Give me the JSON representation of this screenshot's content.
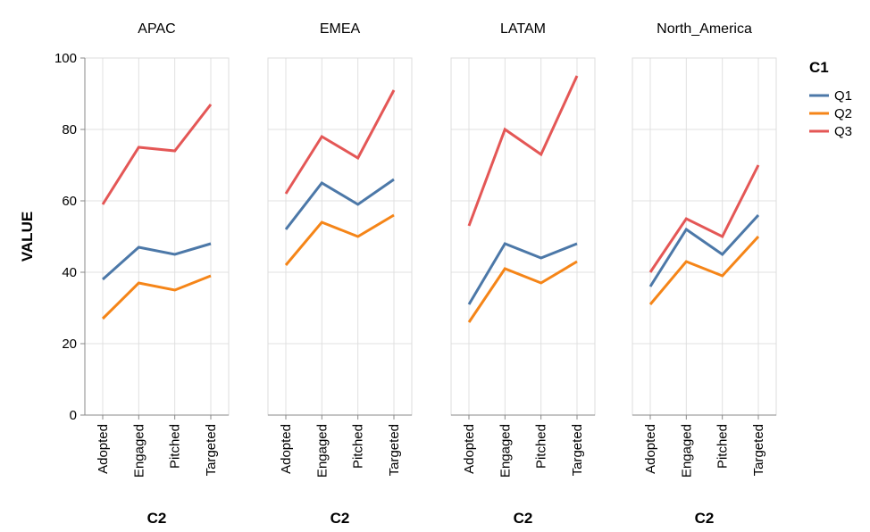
{
  "chart_data": {
    "type": "line",
    "facet_field": "",
    "facets": [
      "APAC",
      "EMEA",
      "LATAM",
      "North_America"
    ],
    "categories": [
      "Adopted",
      "Engaged",
      "Pitched",
      "Targeted"
    ],
    "xlabel": "C2",
    "ylabel": "VALUE",
    "ylim": [
      0,
      100
    ],
    "yticks": [
      0,
      20,
      40,
      60,
      80,
      100
    ],
    "grid": true,
    "legend": {
      "title": "C1",
      "placement": "right",
      "items": [
        {
          "name": "Q1",
          "color": "#4c78a8"
        },
        {
          "name": "Q2",
          "color": "#f58518"
        },
        {
          "name": "Q3",
          "color": "#e45756"
        }
      ]
    },
    "panels": [
      {
        "facet": "APAC",
        "series": [
          {
            "name": "Q1",
            "values": [
              38,
              47,
              45,
              48
            ]
          },
          {
            "name": "Q2",
            "values": [
              27,
              37,
              35,
              39
            ]
          },
          {
            "name": "Q3",
            "values": [
              59,
              75,
              74,
              87
            ]
          }
        ]
      },
      {
        "facet": "EMEA",
        "series": [
          {
            "name": "Q1",
            "values": [
              52,
              65,
              59,
              66
            ]
          },
          {
            "name": "Q2",
            "values": [
              42,
              54,
              50,
              56
            ]
          },
          {
            "name": "Q3",
            "values": [
              62,
              78,
              72,
              91
            ]
          }
        ]
      },
      {
        "facet": "LATAM",
        "series": [
          {
            "name": "Q1",
            "values": [
              31,
              48,
              44,
              48
            ]
          },
          {
            "name": "Q2",
            "values": [
              26,
              41,
              37,
              43
            ]
          },
          {
            "name": "Q3",
            "values": [
              53,
              80,
              73,
              95
            ]
          }
        ]
      },
      {
        "facet": "North_America",
        "series": [
          {
            "name": "Q1",
            "values": [
              36,
              52,
              45,
              56
            ]
          },
          {
            "name": "Q2",
            "values": [
              31,
              43,
              39,
              50
            ]
          },
          {
            "name": "Q3",
            "values": [
              40,
              55,
              50,
              70
            ]
          }
        ]
      }
    ]
  }
}
